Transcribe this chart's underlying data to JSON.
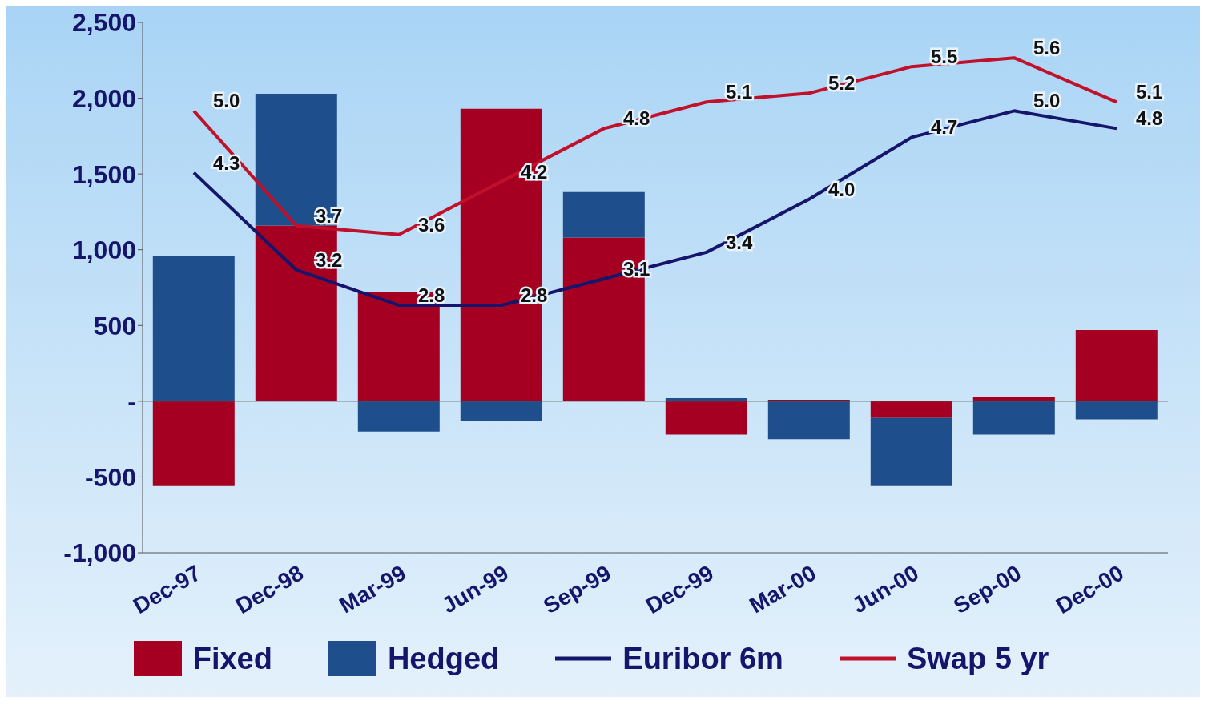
{
  "chart_data": {
    "type": "bar",
    "stacked": true,
    "categories": [
      "Dec-97",
      "Dec-98",
      "Mar-99",
      "Jun-99",
      "Sep-99",
      "Dec-99",
      "Mar-00",
      "Jun-00",
      "Sep-00",
      "Dec-00"
    ],
    "series": [
      {
        "name": "Fixed",
        "color": "#a50021",
        "values": [
          -560,
          1160,
          720,
          1930,
          1080,
          -220,
          10,
          -110,
          30,
          470
        ]
      },
      {
        "name": "Hedged",
        "color": "#1f4e8c",
        "values": [
          960,
          870,
          -200,
          -130,
          300,
          20,
          -250,
          -450,
          -220,
          -120
        ]
      },
      {
        "name": "Euribor 6m",
        "type": "line",
        "axis": "y2",
        "color": "#15156b",
        "values": [
          4.3,
          3.2,
          2.8,
          2.8,
          3.1,
          3.4,
          4.0,
          4.7,
          5.0,
          4.8
        ],
        "value_labels": [
          "4.3",
          "3.2",
          "2.8",
          "2.8",
          "3.1",
          "3.4",
          "4.0",
          "4.7",
          "5.0",
          "4.8"
        ]
      },
      {
        "name": "Swap 5 yr",
        "type": "line",
        "axis": "y2",
        "color": "#c0102a",
        "values": [
          5.0,
          3.7,
          3.6,
          4.2,
          4.8,
          5.1,
          5.2,
          5.5,
          5.6,
          5.1
        ],
        "value_labels": [
          "5.0",
          "3.7",
          "3.6",
          "4.2",
          "4.8",
          "5.1",
          "5.2",
          "5.5",
          "5.6",
          "5.1"
        ]
      }
    ],
    "ylim": [
      -1000,
      2500
    ],
    "yticks": [
      {
        "value": -1000,
        "label": "-1,000"
      },
      -500,
      {
        "value": 0,
        "label": "-"
      },
      500,
      {
        "value": 1000,
        "label": "1,000"
      },
      {
        "value": 1500,
        "label": "1,500"
      },
      {
        "value": 2000,
        "label": "2,000"
      },
      {
        "value": 2500,
        "label": "2,500"
      }
    ],
    "ref_lines": [
      {
        "axis": "y",
        "value": 0,
        "color": "#555555"
      }
    ],
    "y2lim": [
      0,
      6
    ],
    "legend": "bottom",
    "marker": "none"
  }
}
